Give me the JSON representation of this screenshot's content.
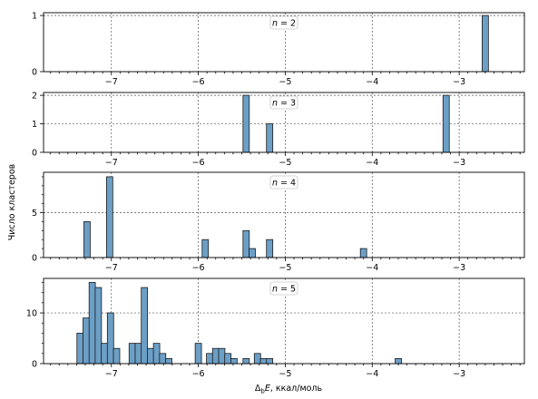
{
  "chart_data": {
    "type": "bar",
    "xlabel_parts": [
      "Δ",
      "b",
      "E",
      ", ккал/моль"
    ],
    "ylabel": "Число кластеров",
    "xlim": [
      -7.78,
      -2.25
    ],
    "xticks": [
      -7,
      -6,
      -5,
      -4,
      -3
    ],
    "xtick_labels": [
      "−7",
      "−6",
      "−5",
      "−4",
      "−3"
    ],
    "bin_width": 0.0725,
    "grid": true,
    "bar_color": "#6c9fc6",
    "bar_edge_color": "#1a1a1a",
    "panels": [
      {
        "label_parts": [
          "n",
          " = 2"
        ],
        "ylim": [
          0,
          1.05
        ],
        "yticks": [
          0,
          1
        ],
        "ytick_labels": [
          "0",
          "1"
        ],
        "minor_yticks": [],
        "bins": [
          {
            "x": -2.7,
            "count": 1
          }
        ]
      },
      {
        "label_parts": [
          "n",
          " = 3"
        ],
        "ylim": [
          0,
          2.1
        ],
        "yticks": [
          0,
          1,
          2
        ],
        "ytick_labels": [
          "0",
          "1",
          "2"
        ],
        "minor_yticks": [],
        "bins": [
          {
            "x": -5.45,
            "count": 2
          },
          {
            "x": -5.18,
            "count": 1
          },
          {
            "x": -3.15,
            "count": 2
          }
        ]
      },
      {
        "label_parts": [
          "n",
          " = 4"
        ],
        "ylim": [
          0,
          9.5
        ],
        "yticks": [
          0,
          5
        ],
        "ytick_labels": [
          "0",
          "5"
        ],
        "minor_yticks": [
          1,
          2,
          3,
          4,
          6,
          7,
          8,
          9
        ],
        "bins": [
          {
            "x": -7.28,
            "count": 4
          },
          {
            "x": -7.02,
            "count": 9
          },
          {
            "x": -5.92,
            "count": 2
          },
          {
            "x": -5.45,
            "count": 3
          },
          {
            "x": -5.38,
            "count": 1
          },
          {
            "x": -5.18,
            "count": 2
          },
          {
            "x": -4.1,
            "count": 1
          }
        ]
      },
      {
        "label_parts": [
          "n",
          " = 5"
        ],
        "ylim": [
          0,
          16.8
        ],
        "yticks": [
          0,
          10
        ],
        "ytick_labels": [
          "0",
          "10"
        ],
        "minor_yticks": [
          2,
          4,
          6,
          8,
          12,
          14,
          16
        ],
        "bins": [
          {
            "x": -7.36,
            "count": 6
          },
          {
            "x": -7.29,
            "count": 9
          },
          {
            "x": -7.22,
            "count": 16
          },
          {
            "x": -7.15,
            "count": 15
          },
          {
            "x": -7.08,
            "count": 4
          },
          {
            "x": -7.01,
            "count": 10
          },
          {
            "x": -6.94,
            "count": 3
          },
          {
            "x": -6.76,
            "count": 4
          },
          {
            "x": -6.69,
            "count": 4
          },
          {
            "x": -6.62,
            "count": 15
          },
          {
            "x": -6.55,
            "count": 3
          },
          {
            "x": -6.48,
            "count": 4
          },
          {
            "x": -6.41,
            "count": 2
          },
          {
            "x": -6.34,
            "count": 1
          },
          {
            "x": -6.0,
            "count": 4
          },
          {
            "x": -5.87,
            "count": 2
          },
          {
            "x": -5.8,
            "count": 3
          },
          {
            "x": -5.73,
            "count": 3
          },
          {
            "x": -5.66,
            "count": 2
          },
          {
            "x": -5.59,
            "count": 1
          },
          {
            "x": -5.45,
            "count": 1
          },
          {
            "x": -5.32,
            "count": 2
          },
          {
            "x": -5.25,
            "count": 1
          },
          {
            "x": -5.18,
            "count": 1
          },
          {
            "x": -3.7,
            "count": 1
          }
        ]
      }
    ]
  }
}
